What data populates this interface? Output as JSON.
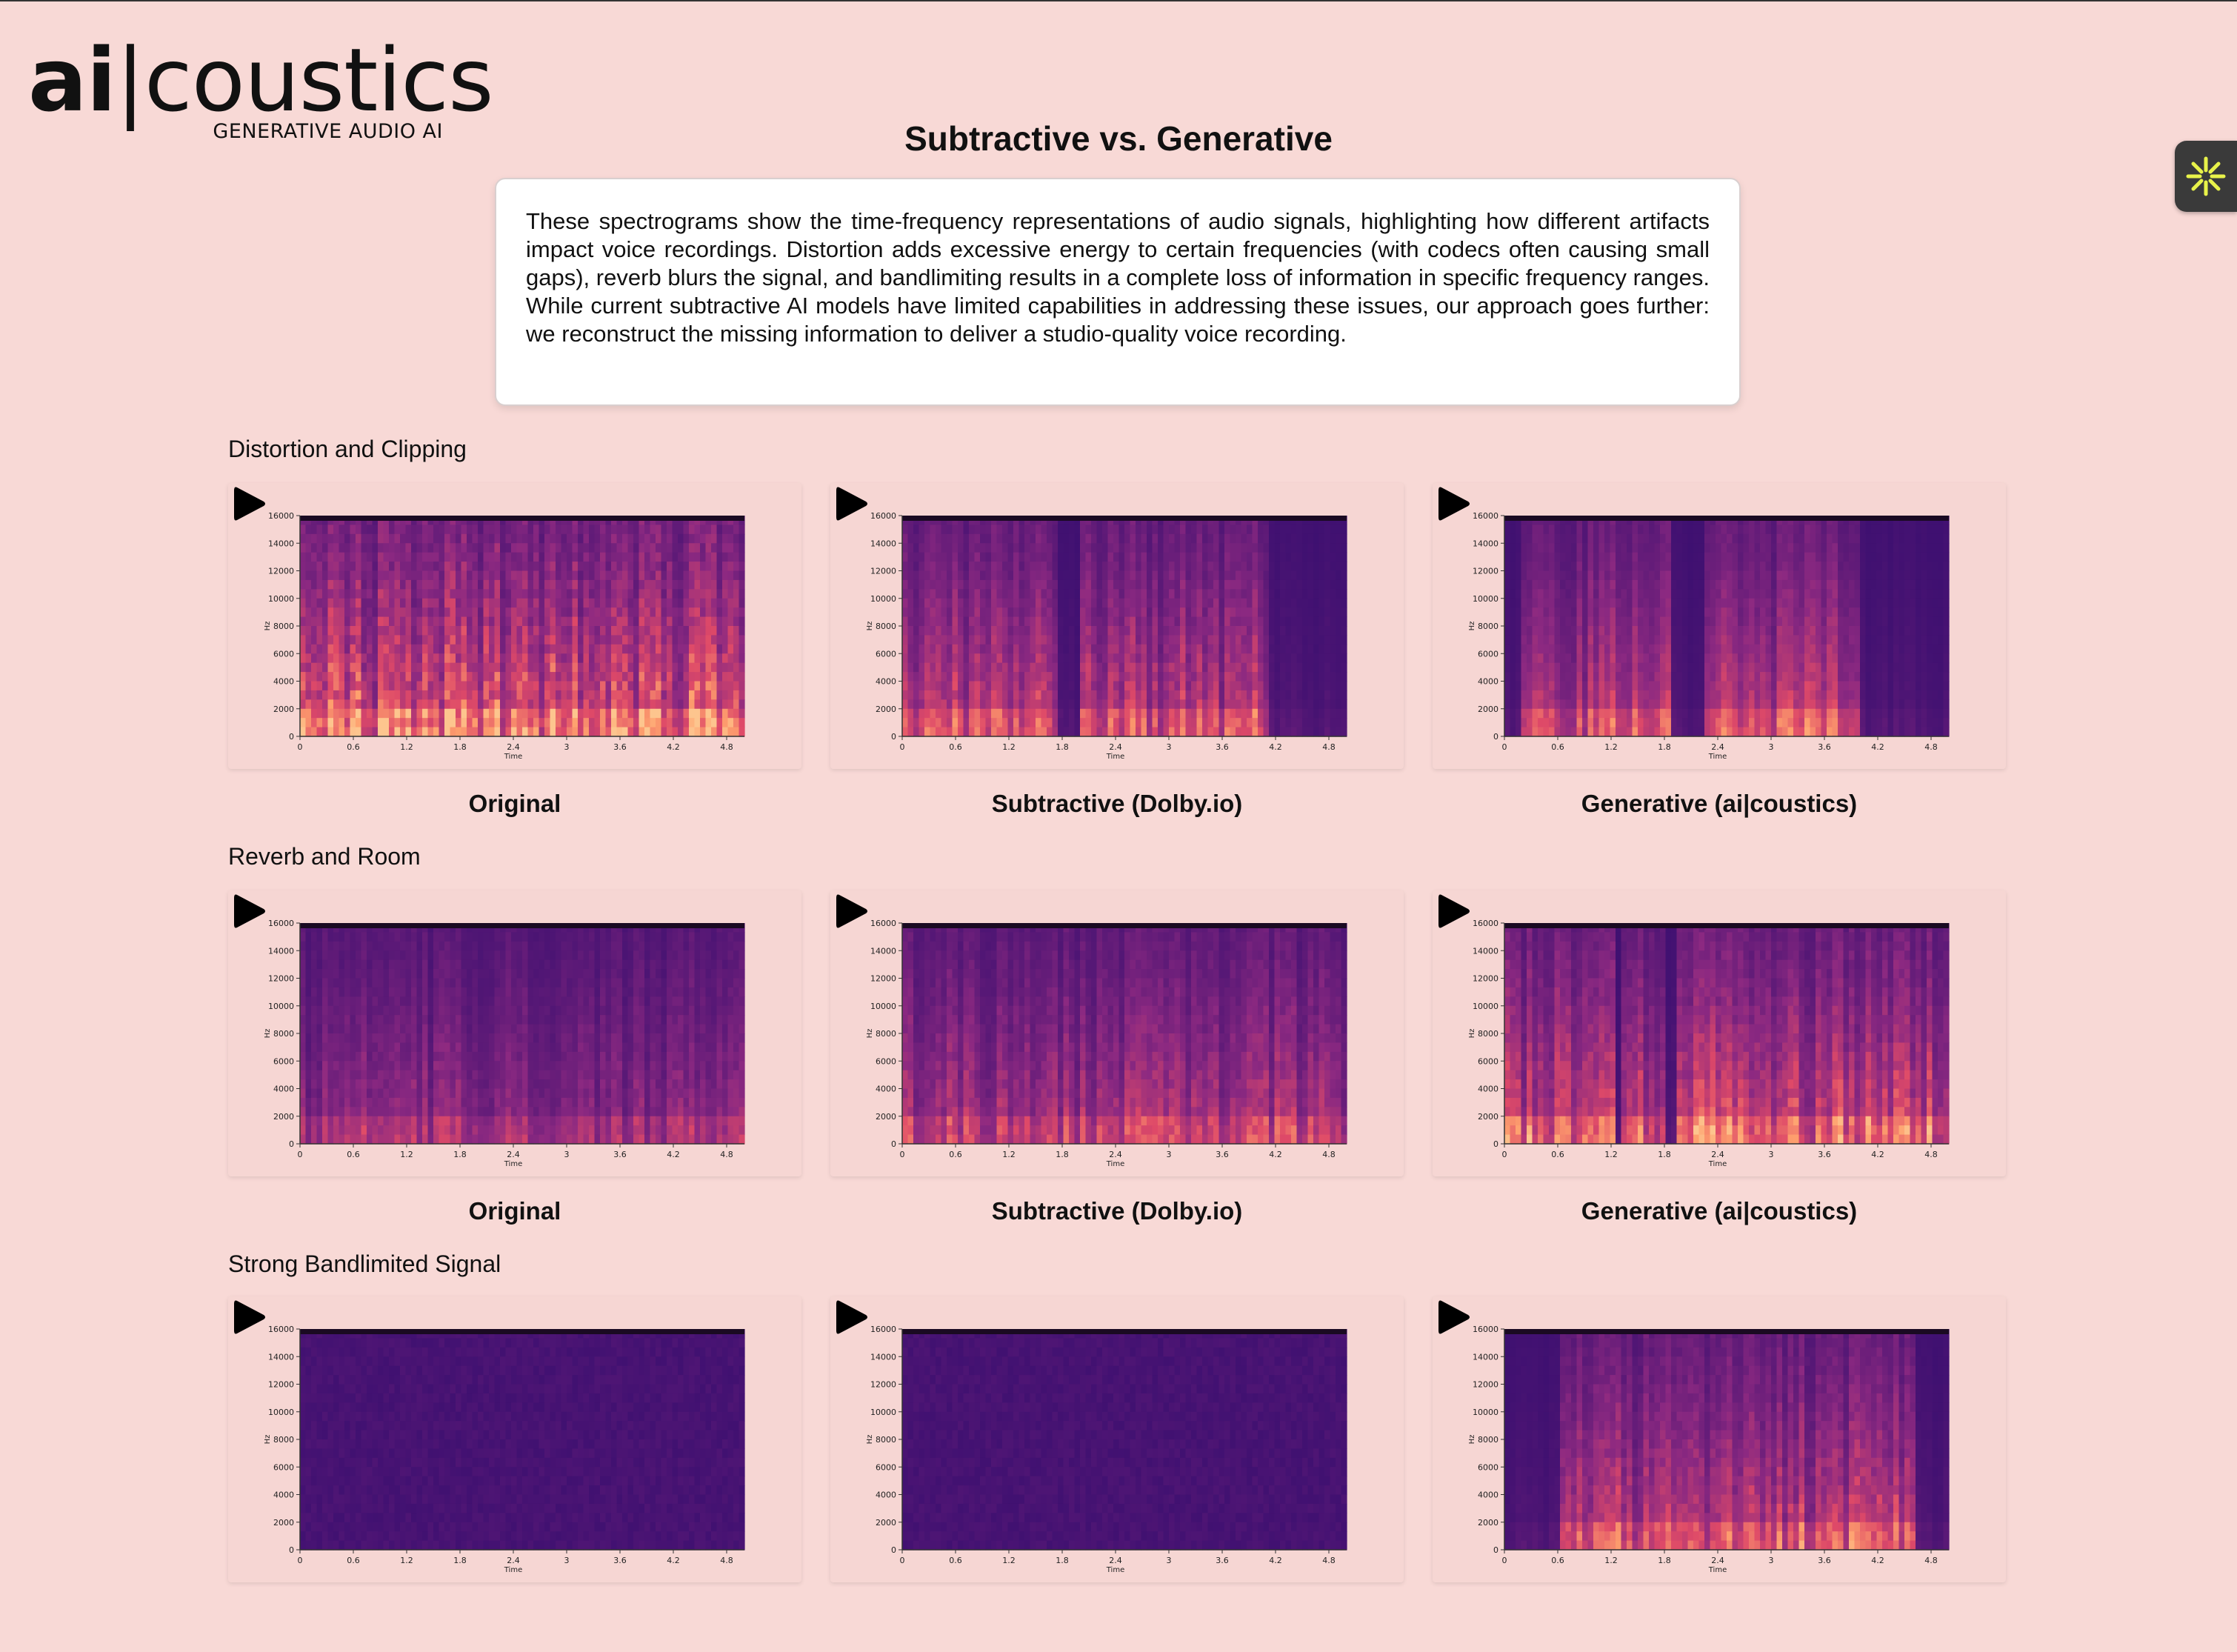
{
  "logo": {
    "ai": "ai",
    "bar": "|",
    "rest": "coustics",
    "tagline": "GENERATIVE AUDIO AI"
  },
  "page_title": "Subtractive vs. Generative",
  "intro": "These spectrograms show the time-frequency representations of audio signals, highlighting how different artifacts impact voice recordings. Distortion adds excessive energy to certain frequencies (with codecs often causing small gaps), reverb blurs the signal, and bandlimiting results in a complete loss of information in specific frequency ranges. While current subtractive AI models have limited capabilities in addressing these issues, our approach goes further: we reconstruct the missing information to deliver a studio-quality voice recording.",
  "colors": {
    "page_bg": "#f8d9d6",
    "spectrogram_low": "#3b0f70",
    "spectrogram_mid": "#b63679",
    "spectrogram_high": "#fcae91",
    "widget_icon": "#e8f24a"
  },
  "spectrogram_axes": {
    "y_ticks": [
      "0",
      "2000",
      "4000",
      "6000",
      "8000",
      "10000",
      "12000",
      "14000",
      "16000"
    ],
    "x_ticks": [
      "0",
      "0.6",
      "1.2",
      "1.8",
      "2.4",
      "3",
      "3.6",
      "4.2",
      "4.8"
    ],
    "y_label": "Hz",
    "x_label": "Time"
  },
  "sections": [
    {
      "title": "Distortion and Clipping",
      "items": [
        {
          "caption": "Original",
          "icon": "play-icon"
        },
        {
          "caption": "Subtractive (Dolby.io)",
          "icon": "play-icon"
        },
        {
          "caption": "Generative (ai|coustics)",
          "icon": "play-icon"
        }
      ]
    },
    {
      "title": "Reverb and Room",
      "items": [
        {
          "caption": "Original",
          "icon": "play-icon"
        },
        {
          "caption": "Subtractive (Dolby.io)",
          "icon": "play-icon"
        },
        {
          "caption": "Generative (ai|coustics)",
          "icon": "play-icon"
        }
      ]
    },
    {
      "title": "Strong Bandlimited Signal",
      "items": [
        {
          "caption": "",
          "icon": "play-icon"
        },
        {
          "caption": "",
          "icon": "play-icon"
        },
        {
          "caption": "",
          "icon": "play-icon"
        }
      ]
    }
  ],
  "widget": {
    "icon": "asterisk-icon"
  }
}
